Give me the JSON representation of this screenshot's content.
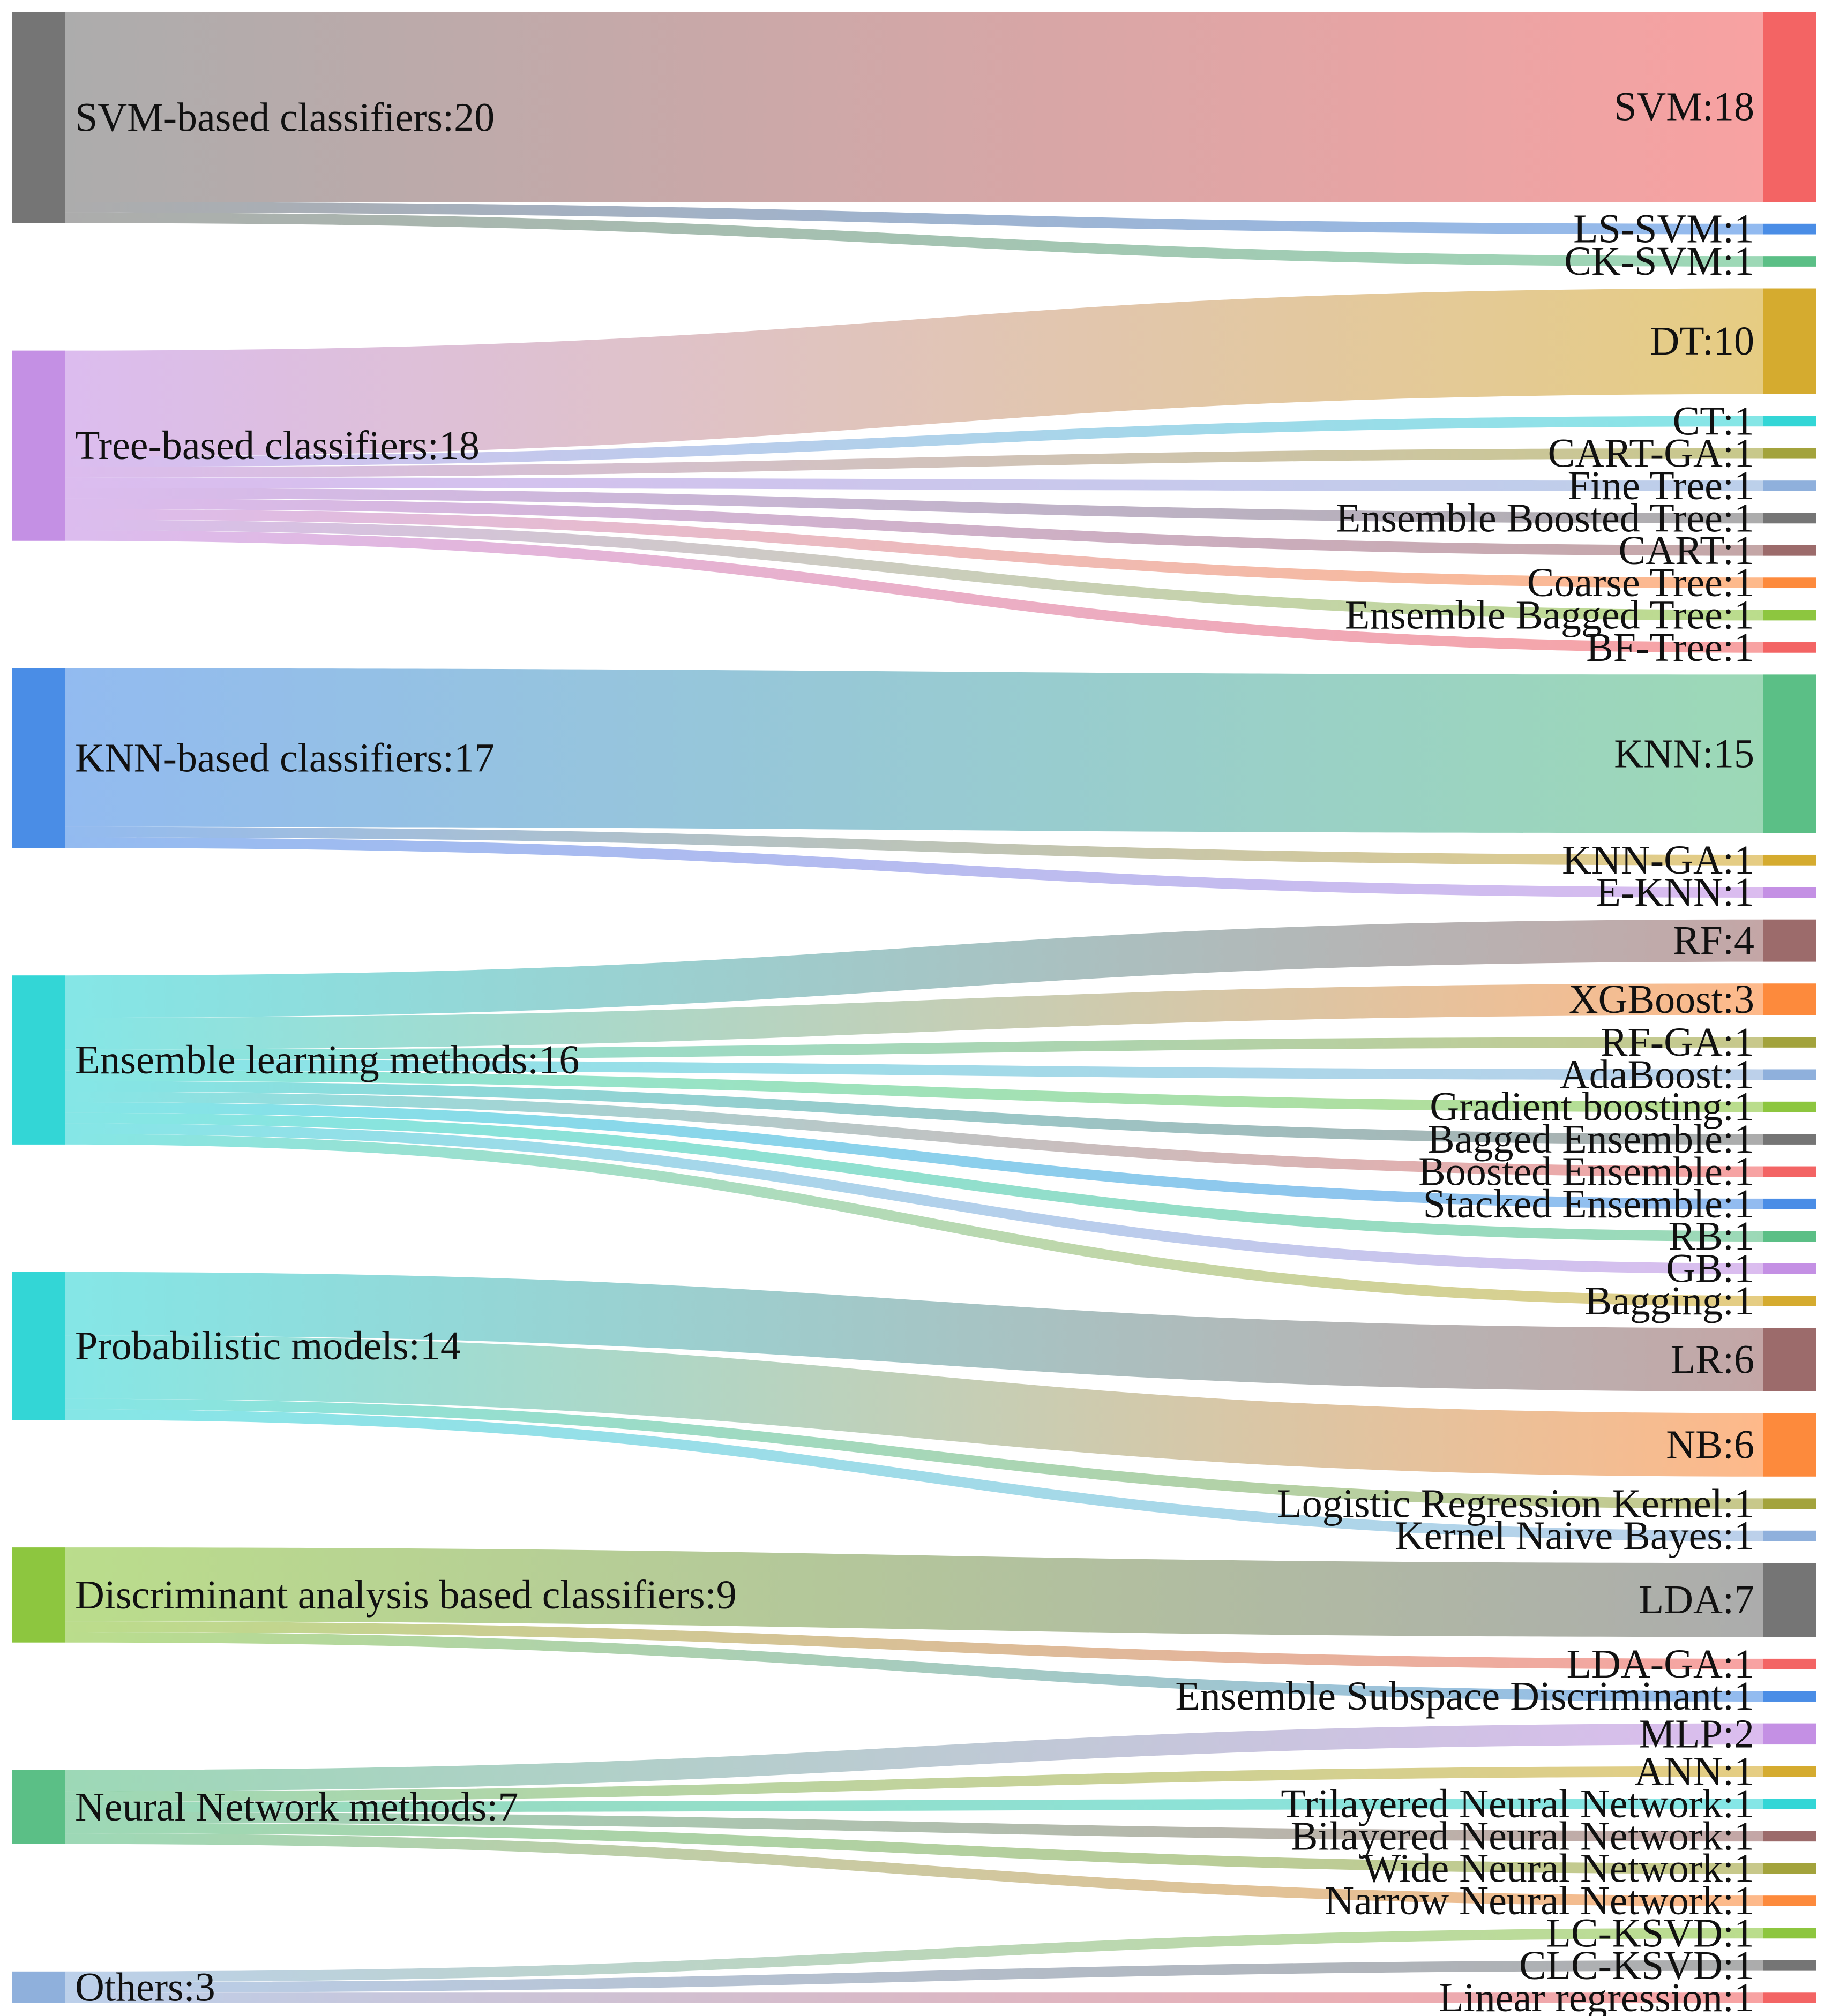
{
  "chart_data": {
    "type": "sankey",
    "title": "",
    "sources": [
      {
        "name": "SVM-based classifiers",
        "value": 20,
        "color": "#757575"
      },
      {
        "name": "Tree-based classifiers",
        "value": 18,
        "color": "#c490e4"
      },
      {
        "name": "KNN-based classifiers",
        "value": 17,
        "color": "#4a8de6"
      },
      {
        "name": "Ensemble learning methods",
        "value": 16,
        "color": "#33d6d6"
      },
      {
        "name": "Probabilistic models",
        "value": 14,
        "color": "#33d6d6"
      },
      {
        "name": "Discriminant analysis based classifiers",
        "value": 9,
        "color": "#8dc63f"
      },
      {
        "name": "Neural Network methods",
        "value": 7,
        "color": "#5bbf86"
      },
      {
        "name": "Others",
        "value": 3,
        "color": "#8fb0dc"
      }
    ],
    "targets": [
      {
        "name": "SVM",
        "value": 18,
        "source": "SVM-based classifiers",
        "color": "#f36464"
      },
      {
        "name": "LS-SVM",
        "value": 1,
        "source": "SVM-based classifiers",
        "color": "#4a8de6"
      },
      {
        "name": "CK-SVM",
        "value": 1,
        "source": "SVM-based classifiers",
        "color": "#5bbf86"
      },
      {
        "name": "DT",
        "value": 10,
        "source": "Tree-based classifiers",
        "color": "#d5ab2f"
      },
      {
        "name": "CT",
        "value": 1,
        "source": "Tree-based classifiers",
        "color": "#33d6d6"
      },
      {
        "name": "CART-GA",
        "value": 1,
        "source": "Tree-based classifiers",
        "color": "#a3a33c"
      },
      {
        "name": "Fine Tree",
        "value": 1,
        "source": "Tree-based classifiers",
        "color": "#8fb0dc"
      },
      {
        "name": "Ensemble Boosted Tree",
        "value": 1,
        "source": "Tree-based classifiers",
        "color": "#757575"
      },
      {
        "name": "CART",
        "value": 1,
        "source": "Tree-based classifiers",
        "color": "#9c6b6b"
      },
      {
        "name": "Coarse Tree",
        "value": 1,
        "source": "Tree-based classifiers",
        "color": "#fd8a3c"
      },
      {
        "name": "Ensemble Bagged Tree",
        "value": 1,
        "source": "Tree-based classifiers",
        "color": "#8dc63f"
      },
      {
        "name": "BF-Tree",
        "value": 1,
        "source": "Tree-based classifiers",
        "color": "#f36464"
      },
      {
        "name": "KNN",
        "value": 15,
        "source": "KNN-based classifiers",
        "color": "#5bbf86"
      },
      {
        "name": "KNN-GA",
        "value": 1,
        "source": "KNN-based classifiers",
        "color": "#d5ab2f"
      },
      {
        "name": "E-KNN",
        "value": 1,
        "source": "KNN-based classifiers",
        "color": "#c490e4"
      },
      {
        "name": "RF",
        "value": 4,
        "source": "Ensemble learning methods",
        "color": "#9c6b6b"
      },
      {
        "name": "XGBoost",
        "value": 3,
        "source": "Ensemble learning methods",
        "color": "#fd8a3c"
      },
      {
        "name": "RF-GA",
        "value": 1,
        "source": "Ensemble learning methods",
        "color": "#a3a33c"
      },
      {
        "name": "AdaBoost",
        "value": 1,
        "source": "Ensemble learning methods",
        "color": "#8fb0dc"
      },
      {
        "name": "Gradient boosting",
        "value": 1,
        "source": "Ensemble learning methods",
        "color": "#8dc63f"
      },
      {
        "name": "Bagged Ensemble",
        "value": 1,
        "source": "Ensemble learning methods",
        "color": "#757575"
      },
      {
        "name": "Boosted Ensemble",
        "value": 1,
        "source": "Ensemble learning methods",
        "color": "#f36464"
      },
      {
        "name": "Stacked Ensemble",
        "value": 1,
        "source": "Ensemble learning methods",
        "color": "#4a8de6"
      },
      {
        "name": "RB",
        "value": 1,
        "source": "Ensemble learning methods",
        "color": "#5bbf86"
      },
      {
        "name": "GB",
        "value": 1,
        "source": "Ensemble learning methods",
        "color": "#c490e4"
      },
      {
        "name": "Bagging",
        "value": 1,
        "source": "Ensemble learning methods",
        "color": "#d5ab2f"
      },
      {
        "name": "LR",
        "value": 6,
        "source": "Probabilistic models",
        "color": "#9c6b6b"
      },
      {
        "name": "NB",
        "value": 6,
        "source": "Probabilistic models",
        "color": "#fd8a3c"
      },
      {
        "name": "Logistic Regression Kernel",
        "value": 1,
        "source": "Probabilistic models",
        "color": "#a3a33c"
      },
      {
        "name": "Kernel Naive Bayes",
        "value": 1,
        "source": "Probabilistic models",
        "color": "#8fb0dc"
      },
      {
        "name": "LDA",
        "value": 7,
        "source": "Discriminant analysis based classifiers",
        "color": "#757575"
      },
      {
        "name": "LDA-GA",
        "value": 1,
        "source": "Discriminant analysis based classifiers",
        "color": "#f36464"
      },
      {
        "name": "Ensemble Subspace Discriminant",
        "value": 1,
        "source": "Discriminant analysis based classifiers",
        "color": "#4a8de6"
      },
      {
        "name": "MLP",
        "value": 2,
        "source": "Neural Network methods",
        "color": "#c490e4"
      },
      {
        "name": "ANN",
        "value": 1,
        "source": "Neural Network methods",
        "color": "#d5ab2f"
      },
      {
        "name": "Trilayered Neural Network",
        "value": 1,
        "source": "Neural Network methods",
        "color": "#33d6d6"
      },
      {
        "name": "Bilayered Neural Network",
        "value": 1,
        "source": "Neural Network methods",
        "color": "#9c6b6b"
      },
      {
        "name": "Wide Neural Network",
        "value": 1,
        "source": "Neural Network methods",
        "color": "#a3a33c"
      },
      {
        "name": "Narrow Neural Network",
        "value": 1,
        "source": "Neural Network methods",
        "color": "#fd8a3c"
      },
      {
        "name": "LC-KSVD",
        "value": 1,
        "source": "Others",
        "color": "#8dc63f"
      },
      {
        "name": "CLC-KSVD",
        "value": 1,
        "source": "Others",
        "color": "#757575"
      },
      {
        "name": "Linear regression",
        "value": 1,
        "source": "Others",
        "color": "#f36464"
      }
    ]
  }
}
